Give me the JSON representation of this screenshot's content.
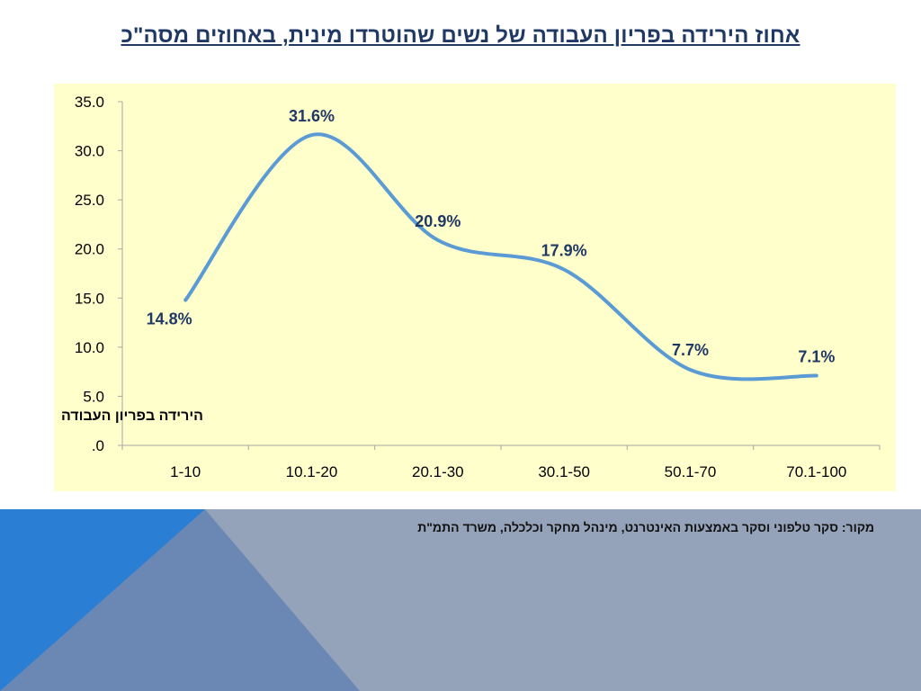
{
  "title": "אחוז הירידה בפריון העבודה של נשים שהוטרדו מינית, באחוזים מסה\"כ",
  "source": "מקור: סקר טלפוני וסקר באמצעות האינטרנט, מינהל מחקר וכלכלה, משרד התמ\"ת",
  "chart_data": {
    "type": "line",
    "smooth": true,
    "categories": [
      "1-10",
      "10.1-20",
      "20.1-30",
      "30.1-50",
      "50.1-70",
      "70.1-100"
    ],
    "series": [
      {
        "name": "הירידה בפריון העבודה",
        "values": [
          14.8,
          31.6,
          20.9,
          17.9,
          7.7,
          7.1
        ],
        "data_labels": [
          "14.8%",
          "31.6%",
          "20.9%",
          "17.9%",
          "7.7%",
          "7.1%"
        ],
        "color": "#5b9bd5"
      }
    ],
    "ylim": [
      0,
      35
    ],
    "y_ticks": [
      0,
      5,
      10,
      15,
      20,
      25,
      30,
      35
    ],
    "y_tick_labels": [
      ".0",
      "5.0",
      "10.0",
      "15.0",
      "20.0",
      "25.0",
      "30.0",
      "35.0"
    ],
    "grid": false,
    "legend_position": "bottom-left inside plot",
    "plot_background": "#ffffcc"
  },
  "colors": {
    "title": "#1f3864",
    "label": "#1f3864",
    "band": "#95a3ba",
    "accent_blue": "#2a7ed3"
  }
}
